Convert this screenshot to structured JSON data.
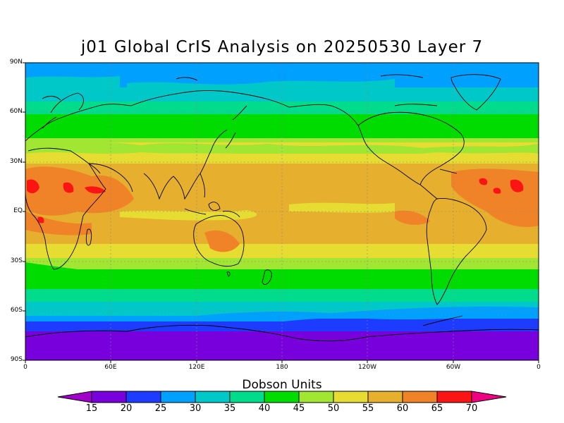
{
  "title": "j01 Global CrIS Analysis on 20250530 Layer 7",
  "latitude_labels": [
    "90N",
    "60N",
    "30N",
    "EQ",
    "30S",
    "60S",
    "90S"
  ],
  "longitude_labels": [
    "0",
    "60E",
    "120E",
    "180",
    "120W",
    "60W",
    "0"
  ],
  "colorbar": {
    "title": "Dobson Units",
    "tick_labels": [
      "15",
      "20",
      "25",
      "30",
      "35",
      "40",
      "45",
      "50",
      "55",
      "60",
      "65",
      "70"
    ],
    "colors": [
      "#a000c8",
      "#7800dc",
      "#1e3cff",
      "#00a0ff",
      "#00c8c8",
      "#00dc8c",
      "#00dc00",
      "#a0e632",
      "#e6dc32",
      "#e6af2d",
      "#f08228",
      "#fa1414",
      "#f00082"
    ]
  }
}
